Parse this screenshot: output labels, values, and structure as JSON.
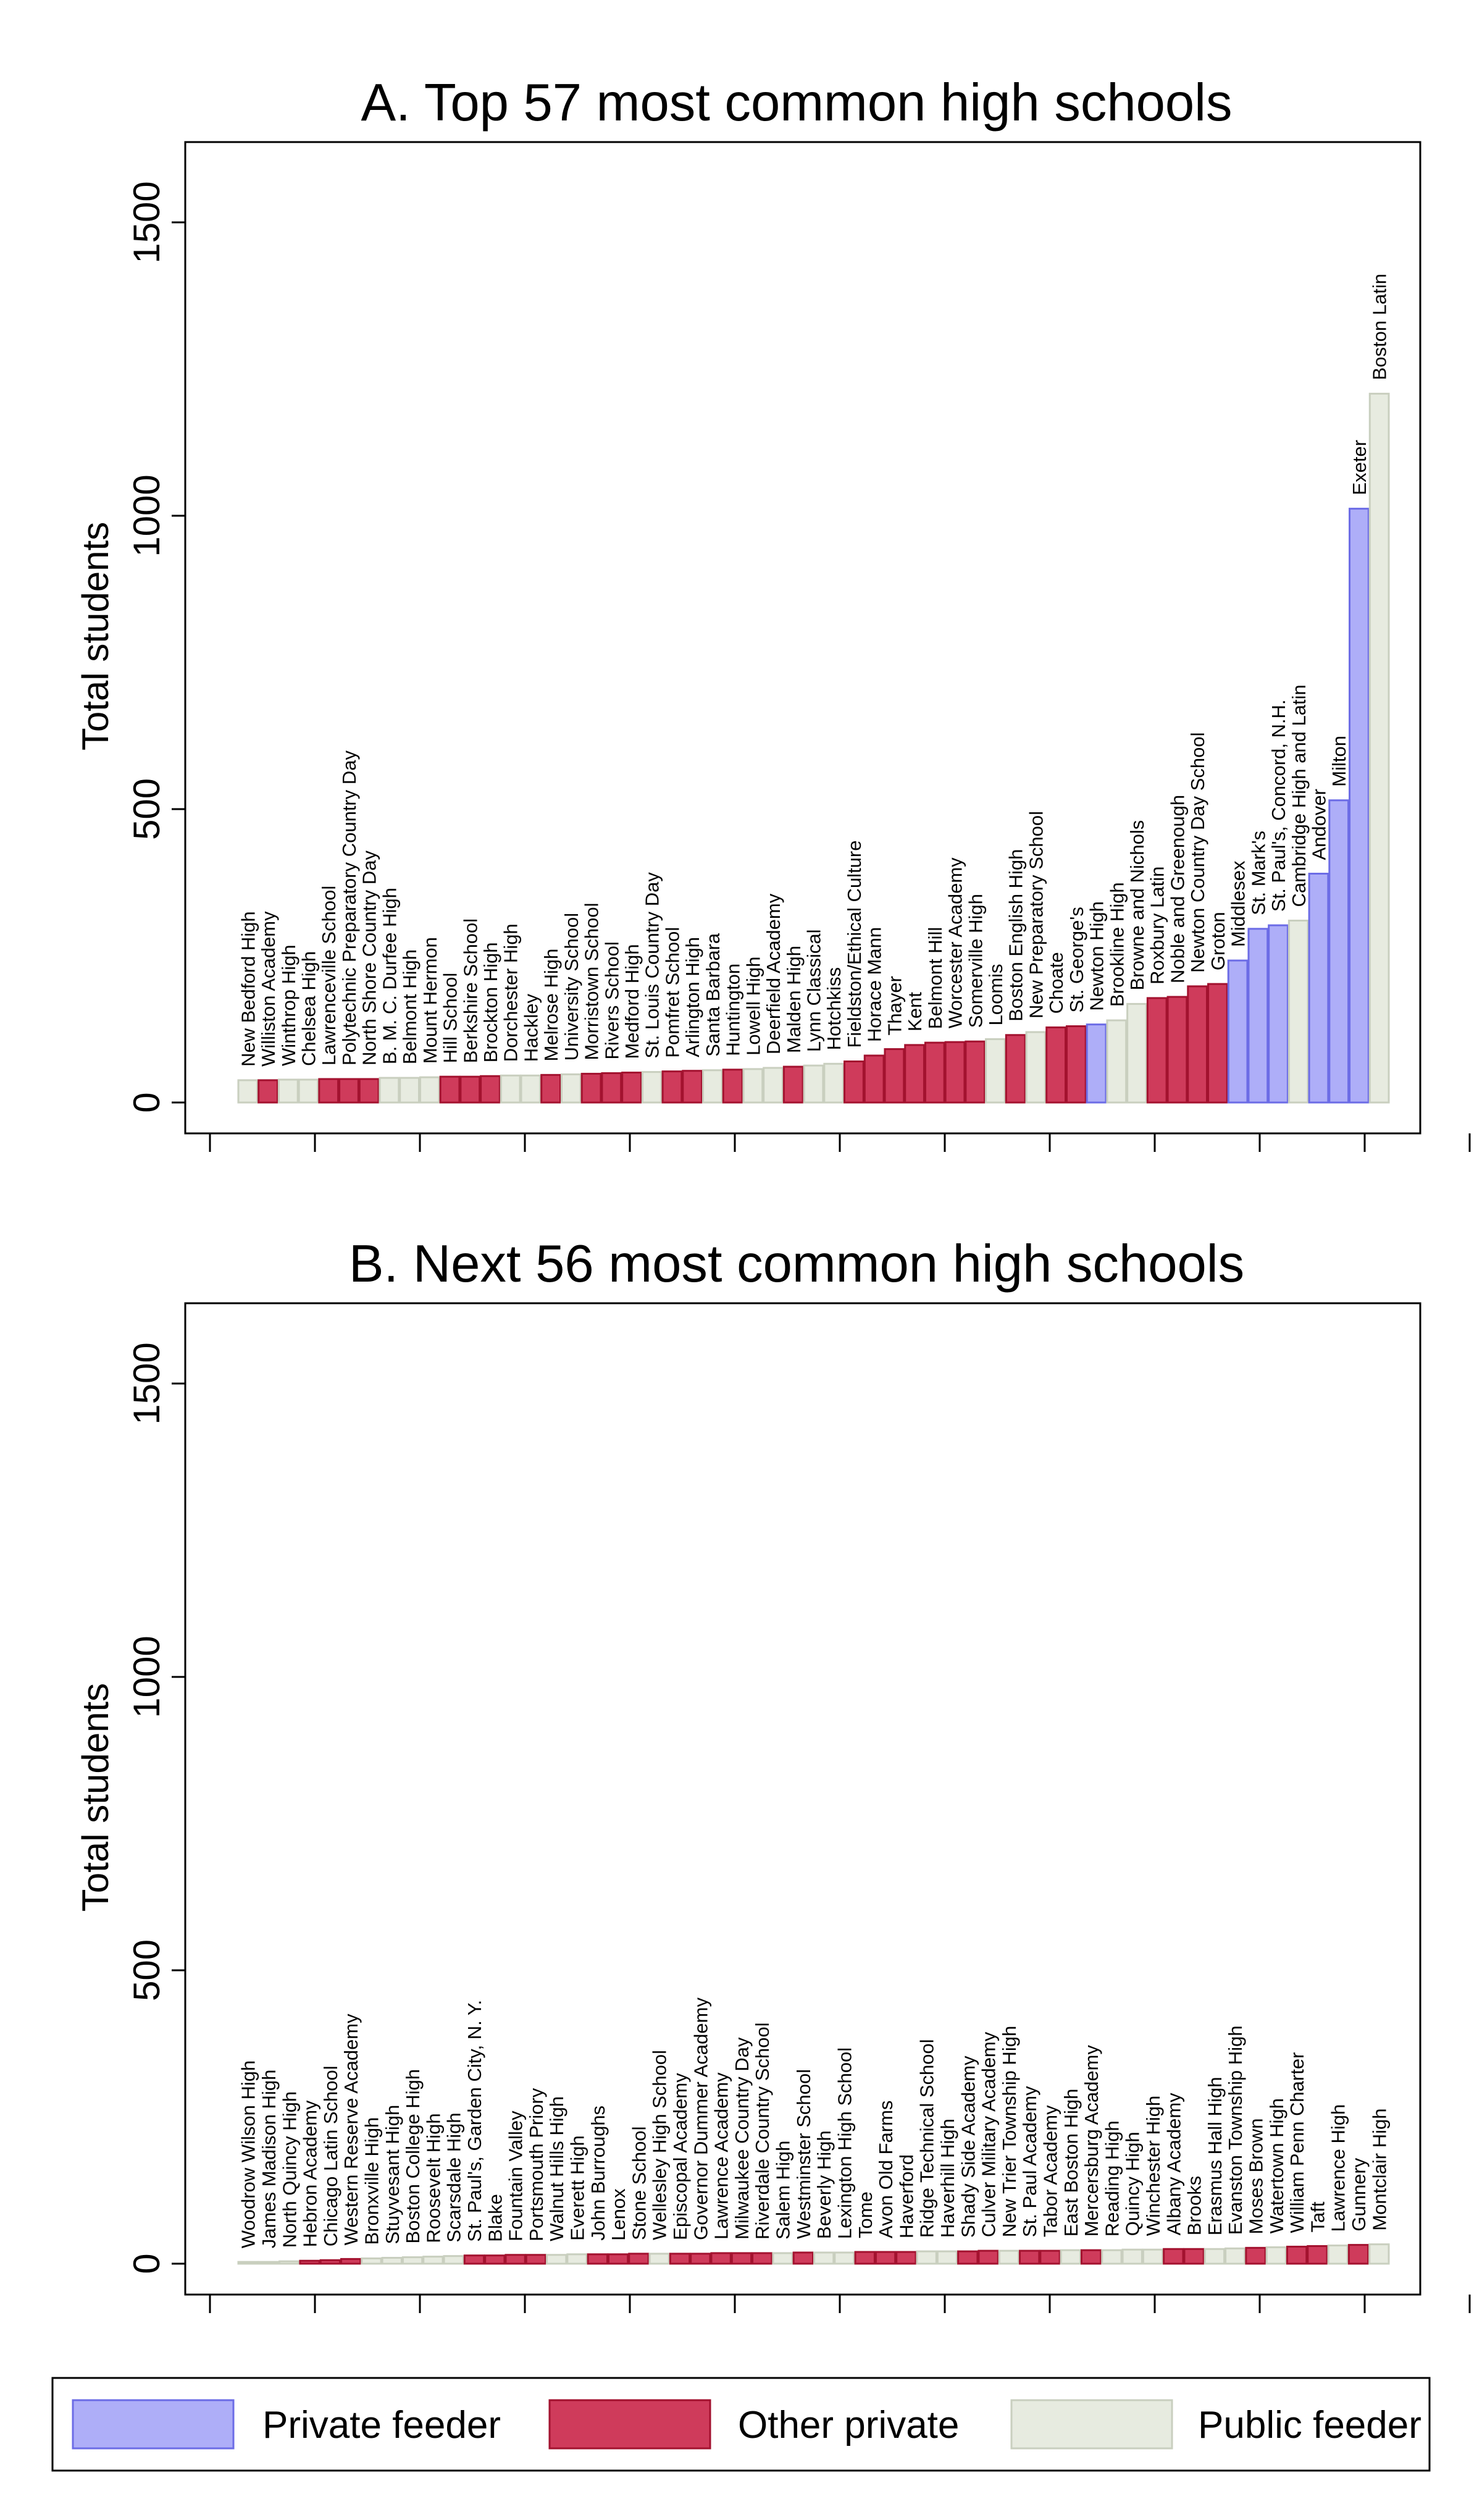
{
  "colors": {
    "private_feeder": {
      "fill": "#aeaef8",
      "stroke": "#6c6ce6"
    },
    "other_private": {
      "fill": "#cf3b5b",
      "stroke": "#a3122f"
    },
    "public_feeder": {
      "fill": "#e7ebe0",
      "stroke": "#c9cfbf"
    }
  },
  "legend": {
    "private_feeder": "Private feeder",
    "other_private": "Other private",
    "public_feeder": "Public feeder"
  },
  "chart_data": [
    {
      "type": "bar",
      "title": "A. Top 57 most common high schools",
      "ylabel": "Total students",
      "xlabel": "",
      "ylim": [
        0,
        1500
      ],
      "yticks": [
        0,
        500,
        1000,
        1500
      ],
      "grid": false,
      "legend_position": "bottom",
      "bars": [
        {
          "label": "New Bedford High",
          "value": 38,
          "group": "public_feeder"
        },
        {
          "label": "Williston Academy",
          "value": 38,
          "group": "other_private"
        },
        {
          "label": "Winthrop High",
          "value": 39,
          "group": "public_feeder"
        },
        {
          "label": "Chelsea High",
          "value": 39,
          "group": "public_feeder"
        },
        {
          "label": "Lawrenceville School",
          "value": 40,
          "group": "other_private"
        },
        {
          "label": "Polytechnic Preparatory Country Day",
          "value": 40,
          "group": "other_private"
        },
        {
          "label": "North Shore Country Day",
          "value": 40,
          "group": "other_private"
        },
        {
          "label": "B. M. C. Durfee High",
          "value": 42,
          "group": "public_feeder"
        },
        {
          "label": "Belmont High",
          "value": 42,
          "group": "public_feeder"
        },
        {
          "label": "Mount Hermon",
          "value": 43,
          "group": "public_feeder"
        },
        {
          "label": "Hill School",
          "value": 44,
          "group": "other_private"
        },
        {
          "label": "Berkshire School",
          "value": 44,
          "group": "other_private"
        },
        {
          "label": "Brockton High",
          "value": 45,
          "group": "other_private"
        },
        {
          "label": "Dorchester High",
          "value": 46,
          "group": "public_feeder"
        },
        {
          "label": "Hackley",
          "value": 46,
          "group": "public_feeder"
        },
        {
          "label": "Melrose High",
          "value": 47,
          "group": "other_private"
        },
        {
          "label": "University School",
          "value": 48,
          "group": "public_feeder"
        },
        {
          "label": "Morristown School",
          "value": 49,
          "group": "other_private"
        },
        {
          "label": "Rivers School",
          "value": 50,
          "group": "other_private"
        },
        {
          "label": "Medford High",
          "value": 51,
          "group": "other_private"
        },
        {
          "label": "St. Louis Country Day",
          "value": 52,
          "group": "public_feeder"
        },
        {
          "label": "Pomfret School",
          "value": 53,
          "group": "other_private"
        },
        {
          "label": "Arlington High",
          "value": 54,
          "group": "other_private"
        },
        {
          "label": "Santa Barbara",
          "value": 55,
          "group": "public_feeder"
        },
        {
          "label": "Huntington",
          "value": 56,
          "group": "other_private"
        },
        {
          "label": "Lowell High",
          "value": 57,
          "group": "public_feeder"
        },
        {
          "label": "Deerfield Academy",
          "value": 59,
          "group": "public_feeder"
        },
        {
          "label": "Malden High",
          "value": 61,
          "group": "other_private"
        },
        {
          "label": "Lynn Classical",
          "value": 63,
          "group": "public_feeder"
        },
        {
          "label": "Hotchkiss",
          "value": 66,
          "group": "public_feeder"
        },
        {
          "label": "Fieldston/Ethical Culture",
          "value": 70,
          "group": "other_private"
        },
        {
          "label": "Horace Mann",
          "value": 80,
          "group": "other_private"
        },
        {
          "label": "Thayer",
          "value": 91,
          "group": "other_private"
        },
        {
          "label": "Kent",
          "value": 98,
          "group": "other_private"
        },
        {
          "label": "Belmont Hill",
          "value": 102,
          "group": "other_private"
        },
        {
          "label": "Worcester Academy",
          "value": 103,
          "group": "other_private"
        },
        {
          "label": "Somerville High",
          "value": 104,
          "group": "other_private"
        },
        {
          "label": "Loomis",
          "value": 108,
          "group": "public_feeder"
        },
        {
          "label": "Boston English High",
          "value": 115,
          "group": "other_private"
        },
        {
          "label": "New Preparatory School",
          "value": 120,
          "group": "public_feeder"
        },
        {
          "label": "Choate",
          "value": 128,
          "group": "other_private"
        },
        {
          "label": "St. George's",
          "value": 130,
          "group": "other_private"
        },
        {
          "label": "Newton High",
          "value": 133,
          "group": "private_feeder"
        },
        {
          "label": "Brookline High",
          "value": 140,
          "group": "public_feeder"
        },
        {
          "label": "Browne and Nichols",
          "value": 168,
          "group": "public_feeder"
        },
        {
          "label": "Roxbury Latin",
          "value": 178,
          "group": "other_private"
        },
        {
          "label": "Noble and Greenough",
          "value": 180,
          "group": "other_private"
        },
        {
          "label": "Newton Country Day School",
          "value": 198,
          "group": "other_private"
        },
        {
          "label": "Groton",
          "value": 202,
          "group": "other_private"
        },
        {
          "label": "Middlesex",
          "value": 242,
          "group": "private_feeder"
        },
        {
          "label": "St. Mark's",
          "value": 296,
          "group": "private_feeder"
        },
        {
          "label": "St. Paul's, Concord, N.H.",
          "value": 302,
          "group": "private_feeder"
        },
        {
          "label": "Cambridge High and Latin",
          "value": 310,
          "group": "public_feeder"
        },
        {
          "label": "Andover",
          "value": 390,
          "group": "private_feeder"
        },
        {
          "label": "Milton",
          "value": 515,
          "group": "private_feeder"
        },
        {
          "label": "Exeter",
          "value": 1012,
          "group": "private_feeder"
        },
        {
          "label": "Boston Latin",
          "value": 1208,
          "group": "public_feeder"
        }
      ]
    },
    {
      "type": "bar",
      "title": "B. Next 56 most common high schools",
      "ylabel": "Total students",
      "xlabel": "",
      "ylim": [
        0,
        1500
      ],
      "yticks": [
        0,
        500,
        1000,
        1500
      ],
      "grid": false,
      "legend_position": "bottom",
      "bars": [
        {
          "label": "Woodrow Wilson High",
          "value": 3,
          "group": "public_feeder"
        },
        {
          "label": "James Madison High",
          "value": 3,
          "group": "public_feeder"
        },
        {
          "label": "North Quincy High",
          "value": 4,
          "group": "public_feeder"
        },
        {
          "label": "Hebron Academy",
          "value": 5,
          "group": "other_private"
        },
        {
          "label": "Chicago Latin School",
          "value": 6,
          "group": "other_private"
        },
        {
          "label": "Western Reserve Academy",
          "value": 8,
          "group": "other_private"
        },
        {
          "label": "Bronxville High",
          "value": 9,
          "group": "public_feeder"
        },
        {
          "label": "Stuyvesant High",
          "value": 10,
          "group": "public_feeder"
        },
        {
          "label": "Boston College High",
          "value": 11,
          "group": "public_feeder"
        },
        {
          "label": "Roosevelt High",
          "value": 12,
          "group": "public_feeder"
        },
        {
          "label": "Scarsdale High",
          "value": 13,
          "group": "public_feeder"
        },
        {
          "label": "St. Paul's, Garden City, N. Y.",
          "value": 14,
          "group": "other_private"
        },
        {
          "label": "Blake",
          "value": 14,
          "group": "other_private"
        },
        {
          "label": "Fountain Valley",
          "value": 15,
          "group": "other_private"
        },
        {
          "label": "Portsmouth Priory",
          "value": 15,
          "group": "other_private"
        },
        {
          "label": "Walnut Hills High",
          "value": 15,
          "group": "public_feeder"
        },
        {
          "label": "Everett High",
          "value": 16,
          "group": "public_feeder"
        },
        {
          "label": "John Burroughs",
          "value": 16,
          "group": "other_private"
        },
        {
          "label": "Lenox",
          "value": 16,
          "group": "other_private"
        },
        {
          "label": "Stone School",
          "value": 17,
          "group": "other_private"
        },
        {
          "label": "Wellesley High School",
          "value": 17,
          "group": "public_feeder"
        },
        {
          "label": "Episcopal Academy",
          "value": 17,
          "group": "other_private"
        },
        {
          "label": "Governor Dummer Academy",
          "value": 17,
          "group": "other_private"
        },
        {
          "label": "Lawrence Academy",
          "value": 18,
          "group": "other_private"
        },
        {
          "label": "Milwaukee Country Day",
          "value": 18,
          "group": "other_private"
        },
        {
          "label": "Riverdale Country School",
          "value": 18,
          "group": "other_private"
        },
        {
          "label": "Salem High",
          "value": 18,
          "group": "public_feeder"
        },
        {
          "label": "Westminster School",
          "value": 19,
          "group": "other_private"
        },
        {
          "label": "Beverly High",
          "value": 19,
          "group": "public_feeder"
        },
        {
          "label": "Lexington High School",
          "value": 19,
          "group": "public_feeder"
        },
        {
          "label": "Tome",
          "value": 20,
          "group": "other_private"
        },
        {
          "label": "Avon Old Farms",
          "value": 20,
          "group": "other_private"
        },
        {
          "label": "Haverford",
          "value": 20,
          "group": "other_private"
        },
        {
          "label": "Ridge Technical School",
          "value": 21,
          "group": "public_feeder"
        },
        {
          "label": "Haverhill High",
          "value": 21,
          "group": "public_feeder"
        },
        {
          "label": "Shady Side Academy",
          "value": 21,
          "group": "other_private"
        },
        {
          "label": "Culver Military Academy",
          "value": 22,
          "group": "other_private"
        },
        {
          "label": "New Trier Township High",
          "value": 22,
          "group": "public_feeder"
        },
        {
          "label": "St. Paul Academy",
          "value": 22,
          "group": "other_private"
        },
        {
          "label": "Tabor Academy",
          "value": 22,
          "group": "other_private"
        },
        {
          "label": "East Boston High",
          "value": 23,
          "group": "public_feeder"
        },
        {
          "label": "Mercersburg Academy",
          "value": 23,
          "group": "other_private"
        },
        {
          "label": "Reading High",
          "value": 23,
          "group": "public_feeder"
        },
        {
          "label": "Quincy High",
          "value": 24,
          "group": "public_feeder"
        },
        {
          "label": "Winchester High",
          "value": 24,
          "group": "public_feeder"
        },
        {
          "label": "Albany Academy",
          "value": 25,
          "group": "other_private"
        },
        {
          "label": "Brooks",
          "value": 25,
          "group": "other_private"
        },
        {
          "label": "Erasmus Hall High",
          "value": 25,
          "group": "public_feeder"
        },
        {
          "label": "Evanston Township High",
          "value": 26,
          "group": "public_feeder"
        },
        {
          "label": "Moses Brown",
          "value": 27,
          "group": "other_private"
        },
        {
          "label": "Watertown High",
          "value": 28,
          "group": "public_feeder"
        },
        {
          "label": "William Penn Charter",
          "value": 29,
          "group": "other_private"
        },
        {
          "label": "Taft",
          "value": 30,
          "group": "other_private"
        },
        {
          "label": "Lawrence High",
          "value": 31,
          "group": "public_feeder"
        },
        {
          "label": "Gunnery",
          "value": 32,
          "group": "other_private"
        },
        {
          "label": "Montclair High",
          "value": 33,
          "group": "public_feeder"
        }
      ]
    }
  ]
}
